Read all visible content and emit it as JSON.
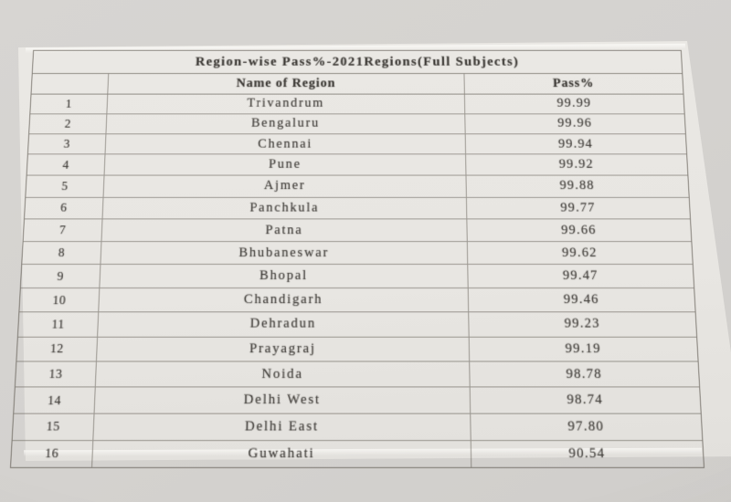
{
  "photo": {
    "background_color": "#d4d2cf",
    "paper_color": "#e8e6e2",
    "line_color": "#8f887f",
    "text_color": "#413e3a"
  },
  "table": {
    "title": "Region-wise Pass%-2021Regions(Full Subjects)",
    "headers": {
      "serial": "",
      "name": "Name of Region",
      "pass": "Pass%"
    },
    "rows": [
      {
        "sno": "1",
        "region": "Trivandrum",
        "pass": "99.99"
      },
      {
        "sno": "2",
        "region": "Bengaluru",
        "pass": "99.96"
      },
      {
        "sno": "3",
        "region": "Chennai",
        "pass": "99.94"
      },
      {
        "sno": "4",
        "region": "Pune",
        "pass": "99.92"
      },
      {
        "sno": "5",
        "region": "Ajmer",
        "pass": "99.88"
      },
      {
        "sno": "6",
        "region": "Panchkula",
        "pass": "99.77"
      },
      {
        "sno": "7",
        "region": "Patna",
        "pass": "99.66"
      },
      {
        "sno": "8",
        "region": "Bhubaneswar",
        "pass": "99.62"
      },
      {
        "sno": "9",
        "region": "Bhopal",
        "pass": "99.47"
      },
      {
        "sno": "10",
        "region": "Chandigarh",
        "pass": "99.46"
      },
      {
        "sno": "11",
        "region": "Dehradun",
        "pass": "99.23"
      },
      {
        "sno": "12",
        "region": "Prayagraj",
        "pass": "99.19"
      },
      {
        "sno": "13",
        "region": "Noida",
        "pass": "98.78"
      },
      {
        "sno": "14",
        "region": "Delhi West",
        "pass": "98.74"
      },
      {
        "sno": "15",
        "region": "Delhi East",
        "pass": "97.80"
      },
      {
        "sno": "16",
        "region": "Guwahati",
        "pass": "90.54"
      }
    ]
  }
}
